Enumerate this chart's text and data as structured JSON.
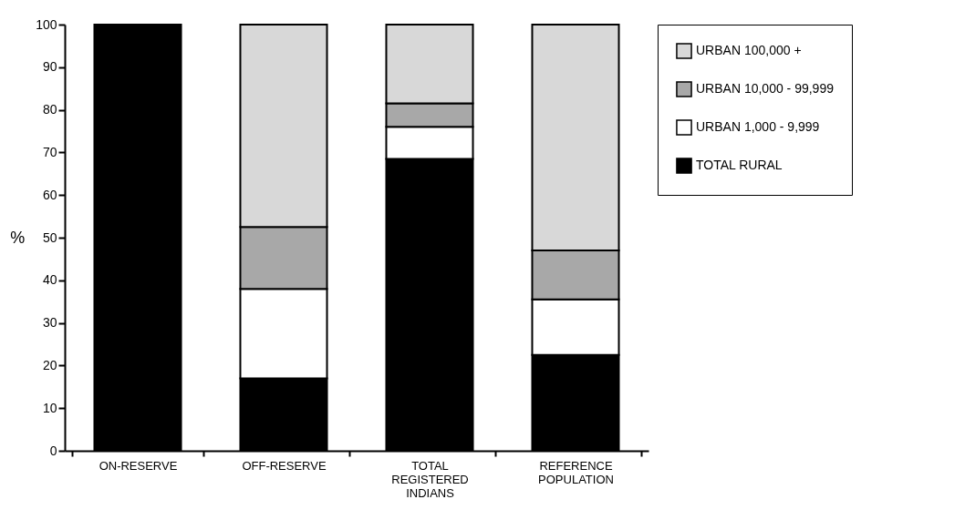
{
  "chart_data": {
    "type": "bar",
    "stacked": true,
    "ylabel": "%",
    "categories": [
      "ON-RESERVE",
      "OFF-RESERVE",
      "TOTAL REGISTERED INDIANS",
      "REFERENCE POPULATION"
    ],
    "series": [
      {
        "name": "TOTAL RURAL",
        "color": "#000000",
        "values": [
          100,
          17,
          68.5,
          22.5
        ]
      },
      {
        "name": "URBAN 1,000 - 9,999",
        "color": "#ffffff",
        "values": [
          null,
          21,
          7.5,
          13
        ]
      },
      {
        "name": "URBAN 10,000 - 99,999",
        "color": "#a8a8a8",
        "values": [
          null,
          14.5,
          5.5,
          11.5
        ]
      },
      {
        "name": "URBAN 100,000 +",
        "color": "#d8d8d8",
        "values": [
          null,
          47.5,
          18.5,
          53
        ]
      }
    ],
    "ylim": [
      0,
      100
    ],
    "yticks": [
      0,
      10,
      20,
      30,
      40,
      50,
      60,
      70,
      80,
      90,
      100
    ],
    "grid": false,
    "legend": "right"
  }
}
